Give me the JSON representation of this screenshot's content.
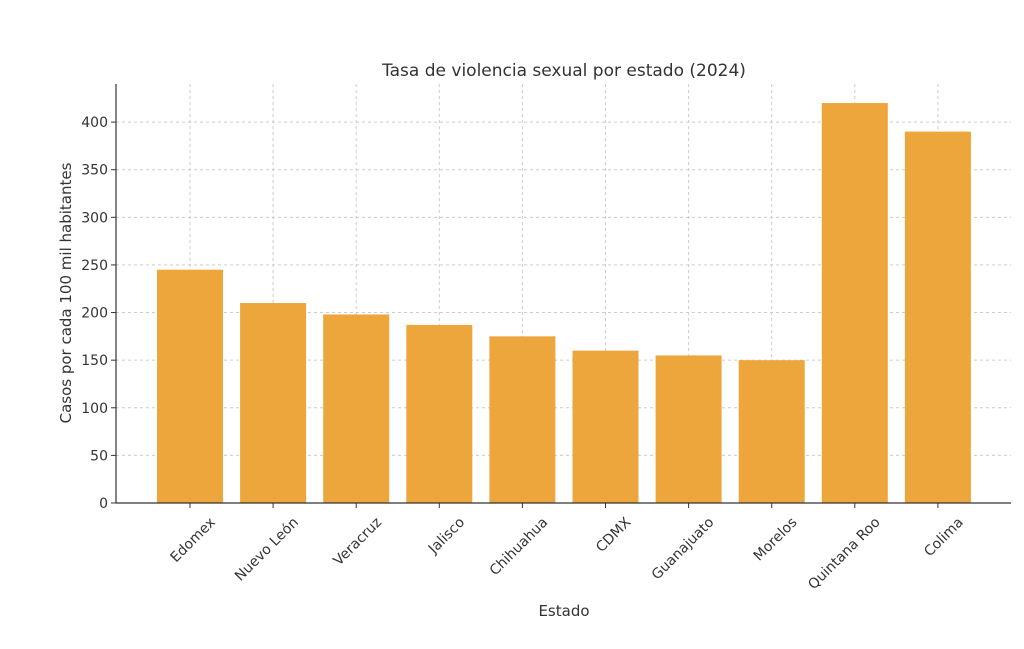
{
  "chart_data": {
    "type": "bar",
    "title": "Tasa de violencia sexual por estado (2024)",
    "xlabel": "Estado",
    "ylabel": "Casos por cada 100 mil habitantes",
    "categories": [
      "Edomex",
      "Nuevo León",
      "Veracruz",
      "Jalisco",
      "Chihuahua",
      "CDMX",
      "Guanajuato",
      "Morelos",
      "Quintana Roo",
      "Colima"
    ],
    "values": [
      245,
      210,
      198,
      187,
      175,
      160,
      155,
      150,
      420,
      390
    ],
    "ylim": [
      0,
      440
    ],
    "yticks": [
      0,
      50,
      100,
      150,
      200,
      250,
      300,
      350,
      400
    ],
    "grid": true,
    "bar_color": "#EDA63B"
  }
}
